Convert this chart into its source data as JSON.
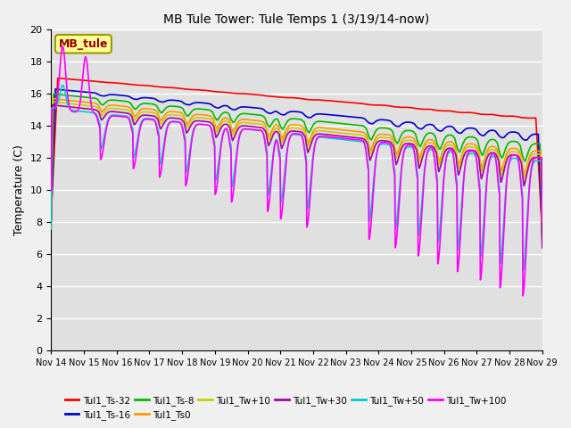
{
  "title": "MB Tule Tower: Tule Temps 1 (3/19/14-now)",
  "ylabel": "Temperature (C)",
  "ylim": [
    0,
    20
  ],
  "yticks": [
    0,
    2,
    4,
    6,
    8,
    10,
    12,
    14,
    16,
    18,
    20
  ],
  "xtick_labels": [
    "Nov 14",
    "Nov 15",
    "Nov 16",
    "Nov 17",
    "Nov 18",
    "Nov 19",
    "Nov 20",
    "Nov 21",
    "Nov 22",
    "Nov 23",
    "Nov 24",
    "Nov 25",
    "Nov 26",
    "Nov 27",
    "Nov 28",
    "Nov 29"
  ],
  "background_color": "#e0e0e0",
  "grid_color": "#ffffff",
  "fig_bg": "#f0f0f0",
  "series_colors": {
    "Tul1_Ts-32": "#ff0000",
    "Tul1_Ts-16": "#0000cc",
    "Tul1_Ts-8": "#00bb00",
    "Tul1_Ts0": "#ff9900",
    "Tul1_Tw+10": "#cccc00",
    "Tul1_Tw+30": "#aa00aa",
    "Tul1_Tw+50": "#00cccc",
    "Tul1_Tw+100": "#ff00ff"
  },
  "legend_label": "MB_tule",
  "legend_text_color": "#990000",
  "legend_box_facecolor": "#ffff99",
  "legend_box_edgecolor": "#999900"
}
